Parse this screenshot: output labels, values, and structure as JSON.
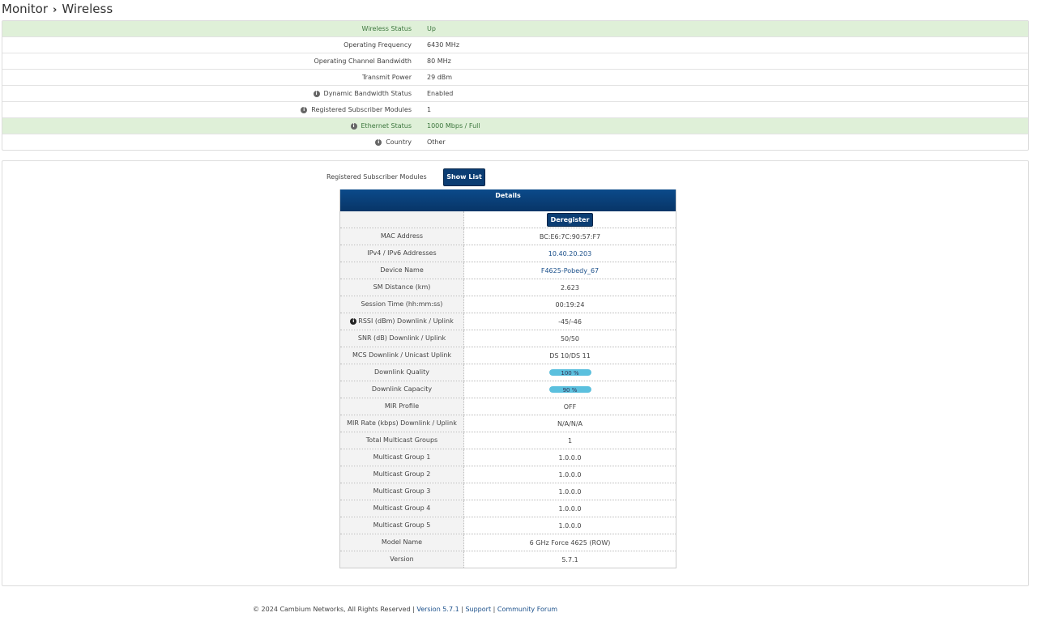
{
  "breadcrumb": {
    "parent": "Monitor",
    "current": "Wireless"
  },
  "status": [
    {
      "label": "Wireless Status",
      "value": "Up",
      "highlight": true,
      "info": false
    },
    {
      "label": "Operating Frequency",
      "value": "6430 MHz",
      "highlight": false,
      "info": false
    },
    {
      "label": "Operating Channel Bandwidth",
      "value": "80 MHz",
      "highlight": false,
      "info": false
    },
    {
      "label": "Transmit Power",
      "value": "29 dBm",
      "highlight": false,
      "info": false
    },
    {
      "label": "Dynamic Bandwidth Status",
      "value": "Enabled",
      "highlight": false,
      "info": true
    },
    {
      "label": "Registered Subscriber Modules",
      "value": "1",
      "highlight": false,
      "info": true
    },
    {
      "label": "Ethernet Status",
      "value": "1000 Mbps / Full",
      "highlight": true,
      "info": true
    },
    {
      "label": "Country",
      "value": "Other",
      "highlight": false,
      "info": true
    }
  ],
  "sm": {
    "label": "Registered Subscriber Modules",
    "show_list": "Show List",
    "details_title": "Details",
    "deregister": "Deregister",
    "rows": [
      {
        "label": "MAC Address",
        "value": "BC:E6:7C:90:57:F7"
      },
      {
        "label": "IPv4 / IPv6 Addresses",
        "value": "10.40.20.203",
        "link": true
      },
      {
        "label": "Device Name",
        "value": "F4625-Pobedy_67",
        "link": true
      },
      {
        "label": "SM Distance (km)",
        "value": "2.623"
      },
      {
        "label": "Session Time (hh:mm:ss)",
        "value": "00:19:24"
      },
      {
        "label": "RSSI (dBm) Downlink / Uplink",
        "value": "-45/-46",
        "info": true
      },
      {
        "label": "SNR (dB) Downlink / Uplink",
        "value": "50/50"
      },
      {
        "label": "MCS Downlink / Unicast Uplink",
        "value": "DS 10/DS 11"
      },
      {
        "label": "Downlink Quality",
        "value": "100 %",
        "bar": 100
      },
      {
        "label": "Downlink Capacity",
        "value": "90 %",
        "bar": 90
      },
      {
        "label": "MIR Profile",
        "value": "OFF"
      },
      {
        "label": "MIR Rate (kbps) Downlink / Uplink",
        "value": "N/A/N/A"
      },
      {
        "label": "Total Multicast Groups",
        "value": "1"
      },
      {
        "label": "Multicast Group 1",
        "value": "1.0.0.0"
      },
      {
        "label": "Multicast Group 2",
        "value": "1.0.0.0"
      },
      {
        "label": "Multicast Group 3",
        "value": "1.0.0.0"
      },
      {
        "label": "Multicast Group 4",
        "value": "1.0.0.0"
      },
      {
        "label": "Multicast Group 5",
        "value": "1.0.0.0"
      },
      {
        "label": "Model Name",
        "value": "6 GHz Force 4625 (ROW)"
      },
      {
        "label": "Version",
        "value": "5.7.1"
      }
    ]
  },
  "footer": {
    "copyright": "© 2024 Cambium Networks, All Rights Reserved",
    "version": "Version 5.7.1",
    "support": "Support",
    "forum": "Community Forum",
    "sep": " | "
  },
  "colors": {
    "highlight_row": "#dff0d8",
    "button": "#0b3d73",
    "bar": "#5bc0de"
  }
}
